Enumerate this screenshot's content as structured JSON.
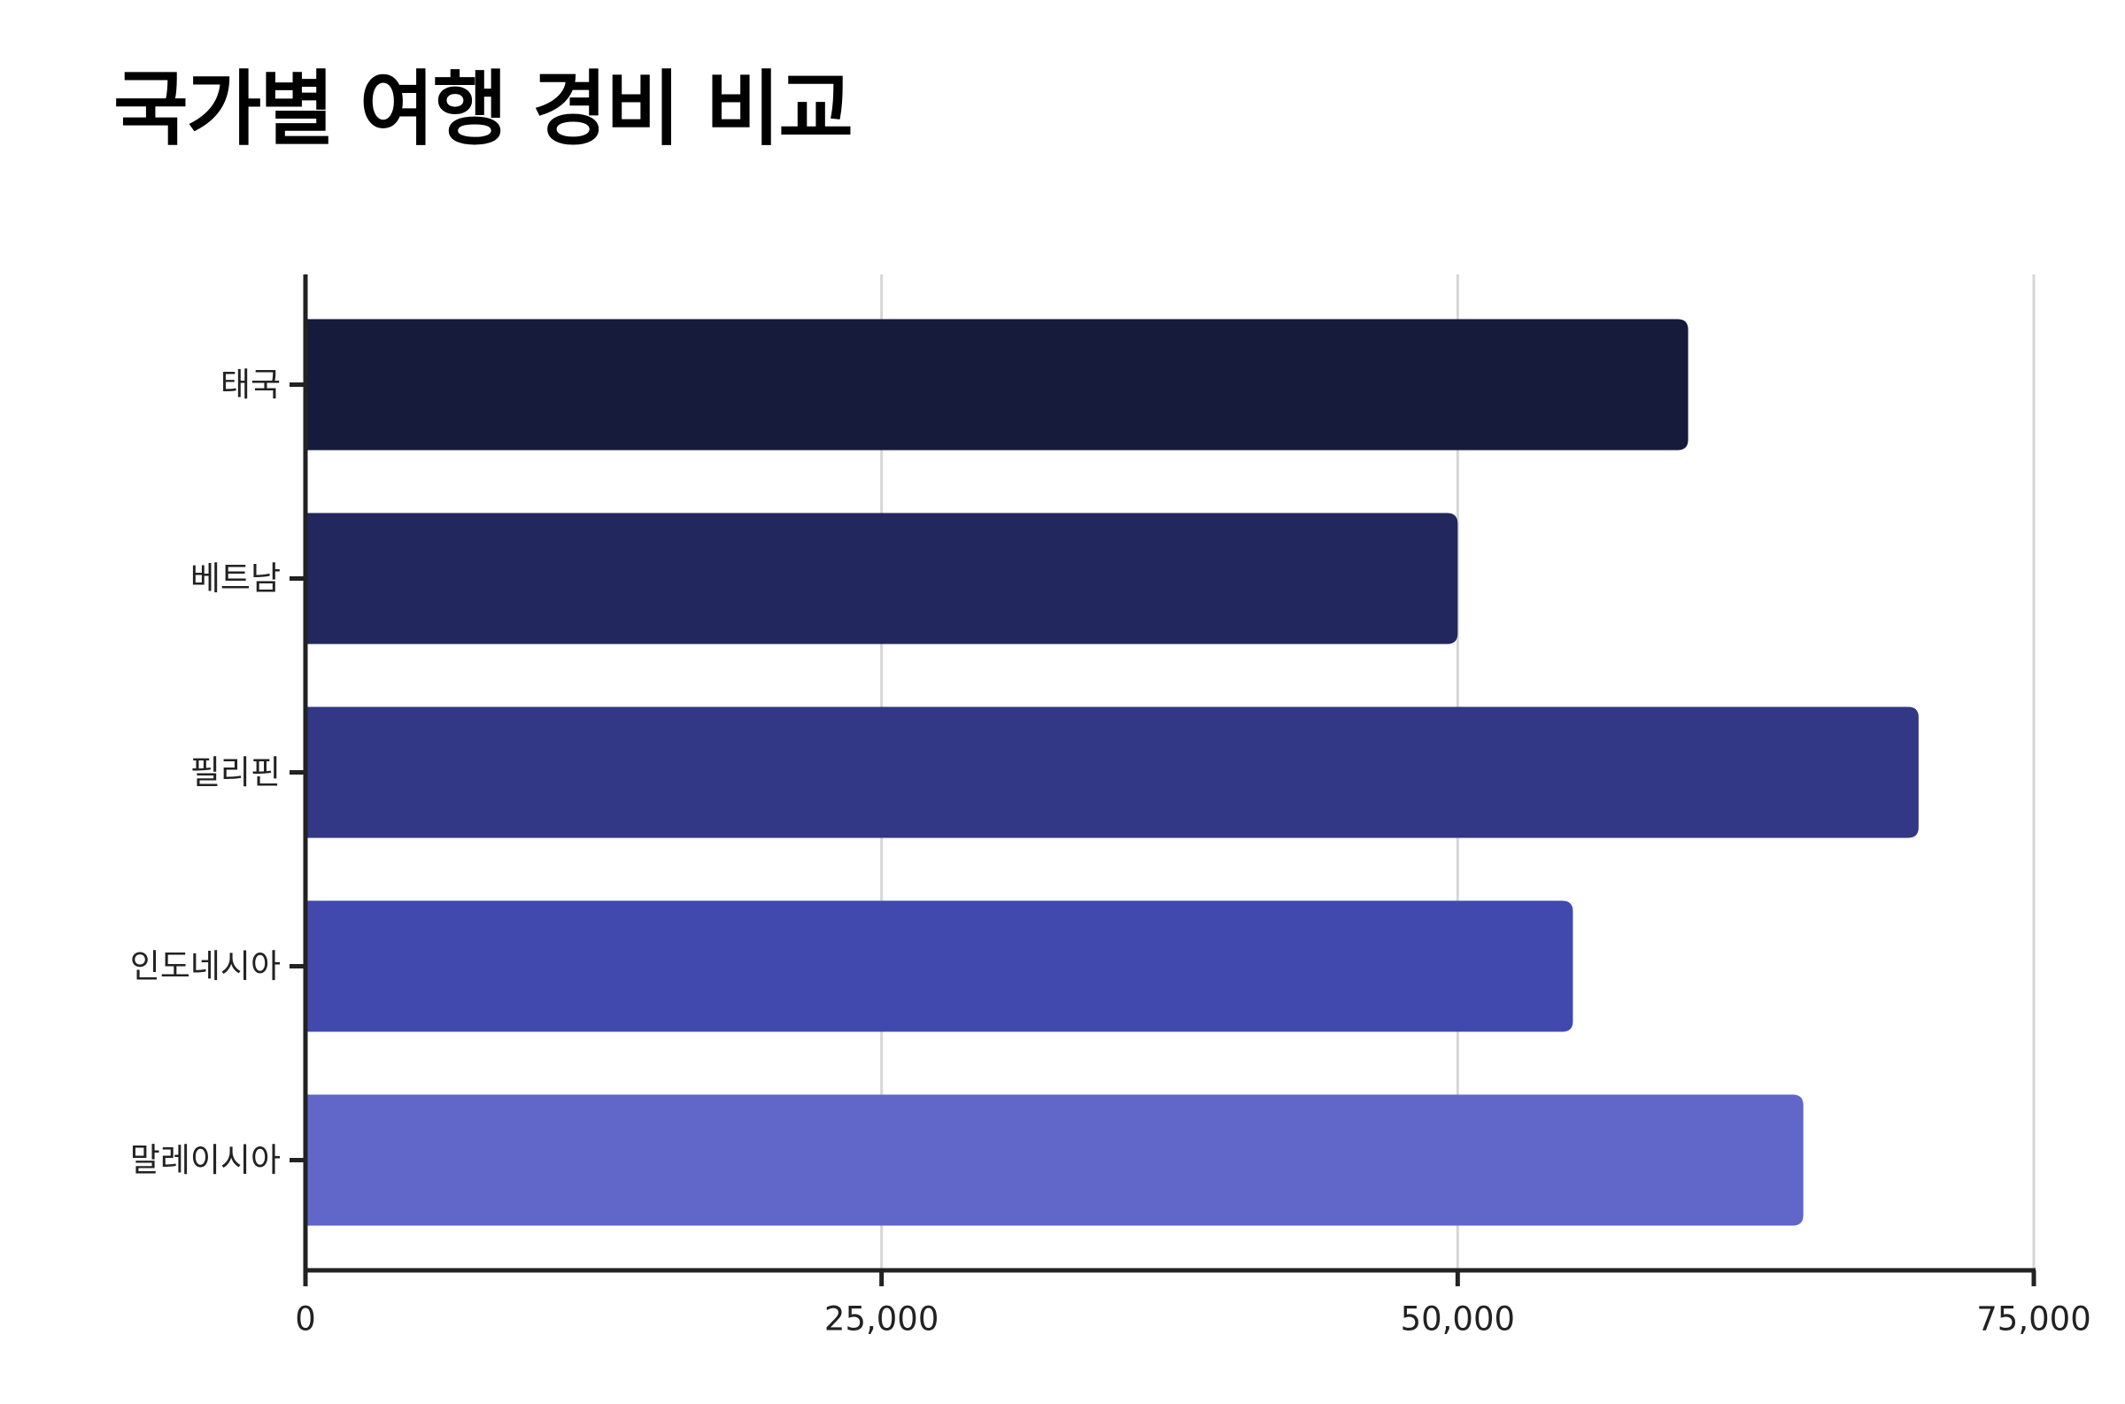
{
  "chart_data": {
    "type": "bar",
    "orientation": "horizontal",
    "title": "국가별 여행 경비 비교",
    "xlabel": "",
    "ylabel": "",
    "categories": [
      "태국",
      "베트남",
      "필리핀",
      "인도네시아",
      "말레이시아"
    ],
    "values": [
      60000,
      50000,
      70000,
      55000,
      65000
    ],
    "colors": [
      "#161a3b",
      "#22275e",
      "#323786",
      "#4149ae",
      "#6167c8"
    ],
    "xlim": [
      0,
      75000
    ],
    "xticks": [
      0,
      25000,
      50000,
      75000
    ],
    "xtick_labels": [
      "0",
      "25,000",
      "50,000",
      "75,000"
    ],
    "grid": "vertical",
    "legend": "none"
  }
}
